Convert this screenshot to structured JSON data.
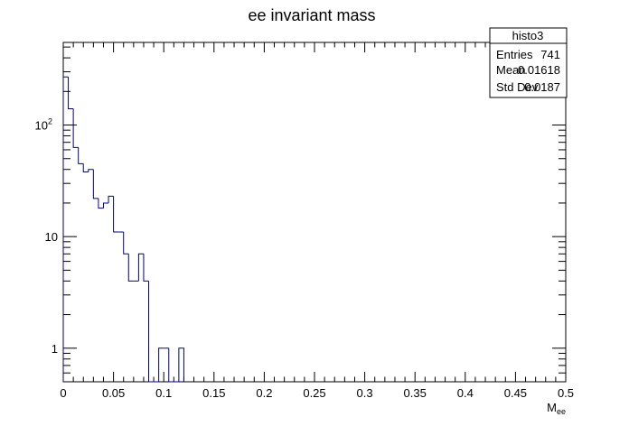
{
  "chart_data": {
    "type": "histogram",
    "title": "ee invariant mass",
    "xlabel": "M_ee",
    "xlabel_main": "M",
    "xlabel_sub": "ee",
    "ylabel": "",
    "xlim": [
      0,
      0.5
    ],
    "ylim": [
      0.5,
      550
    ],
    "yscale": "log",
    "grid": false,
    "line_color": "#000080",
    "bin_width": 0.005,
    "bins_x_start": 0,
    "x_ticks": [
      "0",
      "0.05",
      "0.1",
      "0.15",
      "0.2",
      "0.25",
      "0.3",
      "0.35",
      "0.4",
      "0.45",
      "0.5"
    ],
    "y_ticks": [
      {
        "value": 1,
        "label": "1"
      },
      {
        "value": 10,
        "label": "10"
      },
      {
        "value": 100,
        "label": "10",
        "sup": "2"
      }
    ],
    "values": [
      270,
      140,
      63,
      45,
      38,
      40,
      22,
      18,
      20,
      23,
      11,
      11,
      7,
      4,
      4,
      7,
      4,
      0,
      0,
      1,
      1,
      0,
      0,
      1
    ],
    "stats_box": {
      "name": "histo3",
      "rows": [
        {
          "label": "Entries",
          "value": "741"
        },
        {
          "label": "Mean",
          "value": "0.01618"
        },
        {
          "label": "Std Dev",
          "value": "0.0187"
        }
      ]
    }
  }
}
